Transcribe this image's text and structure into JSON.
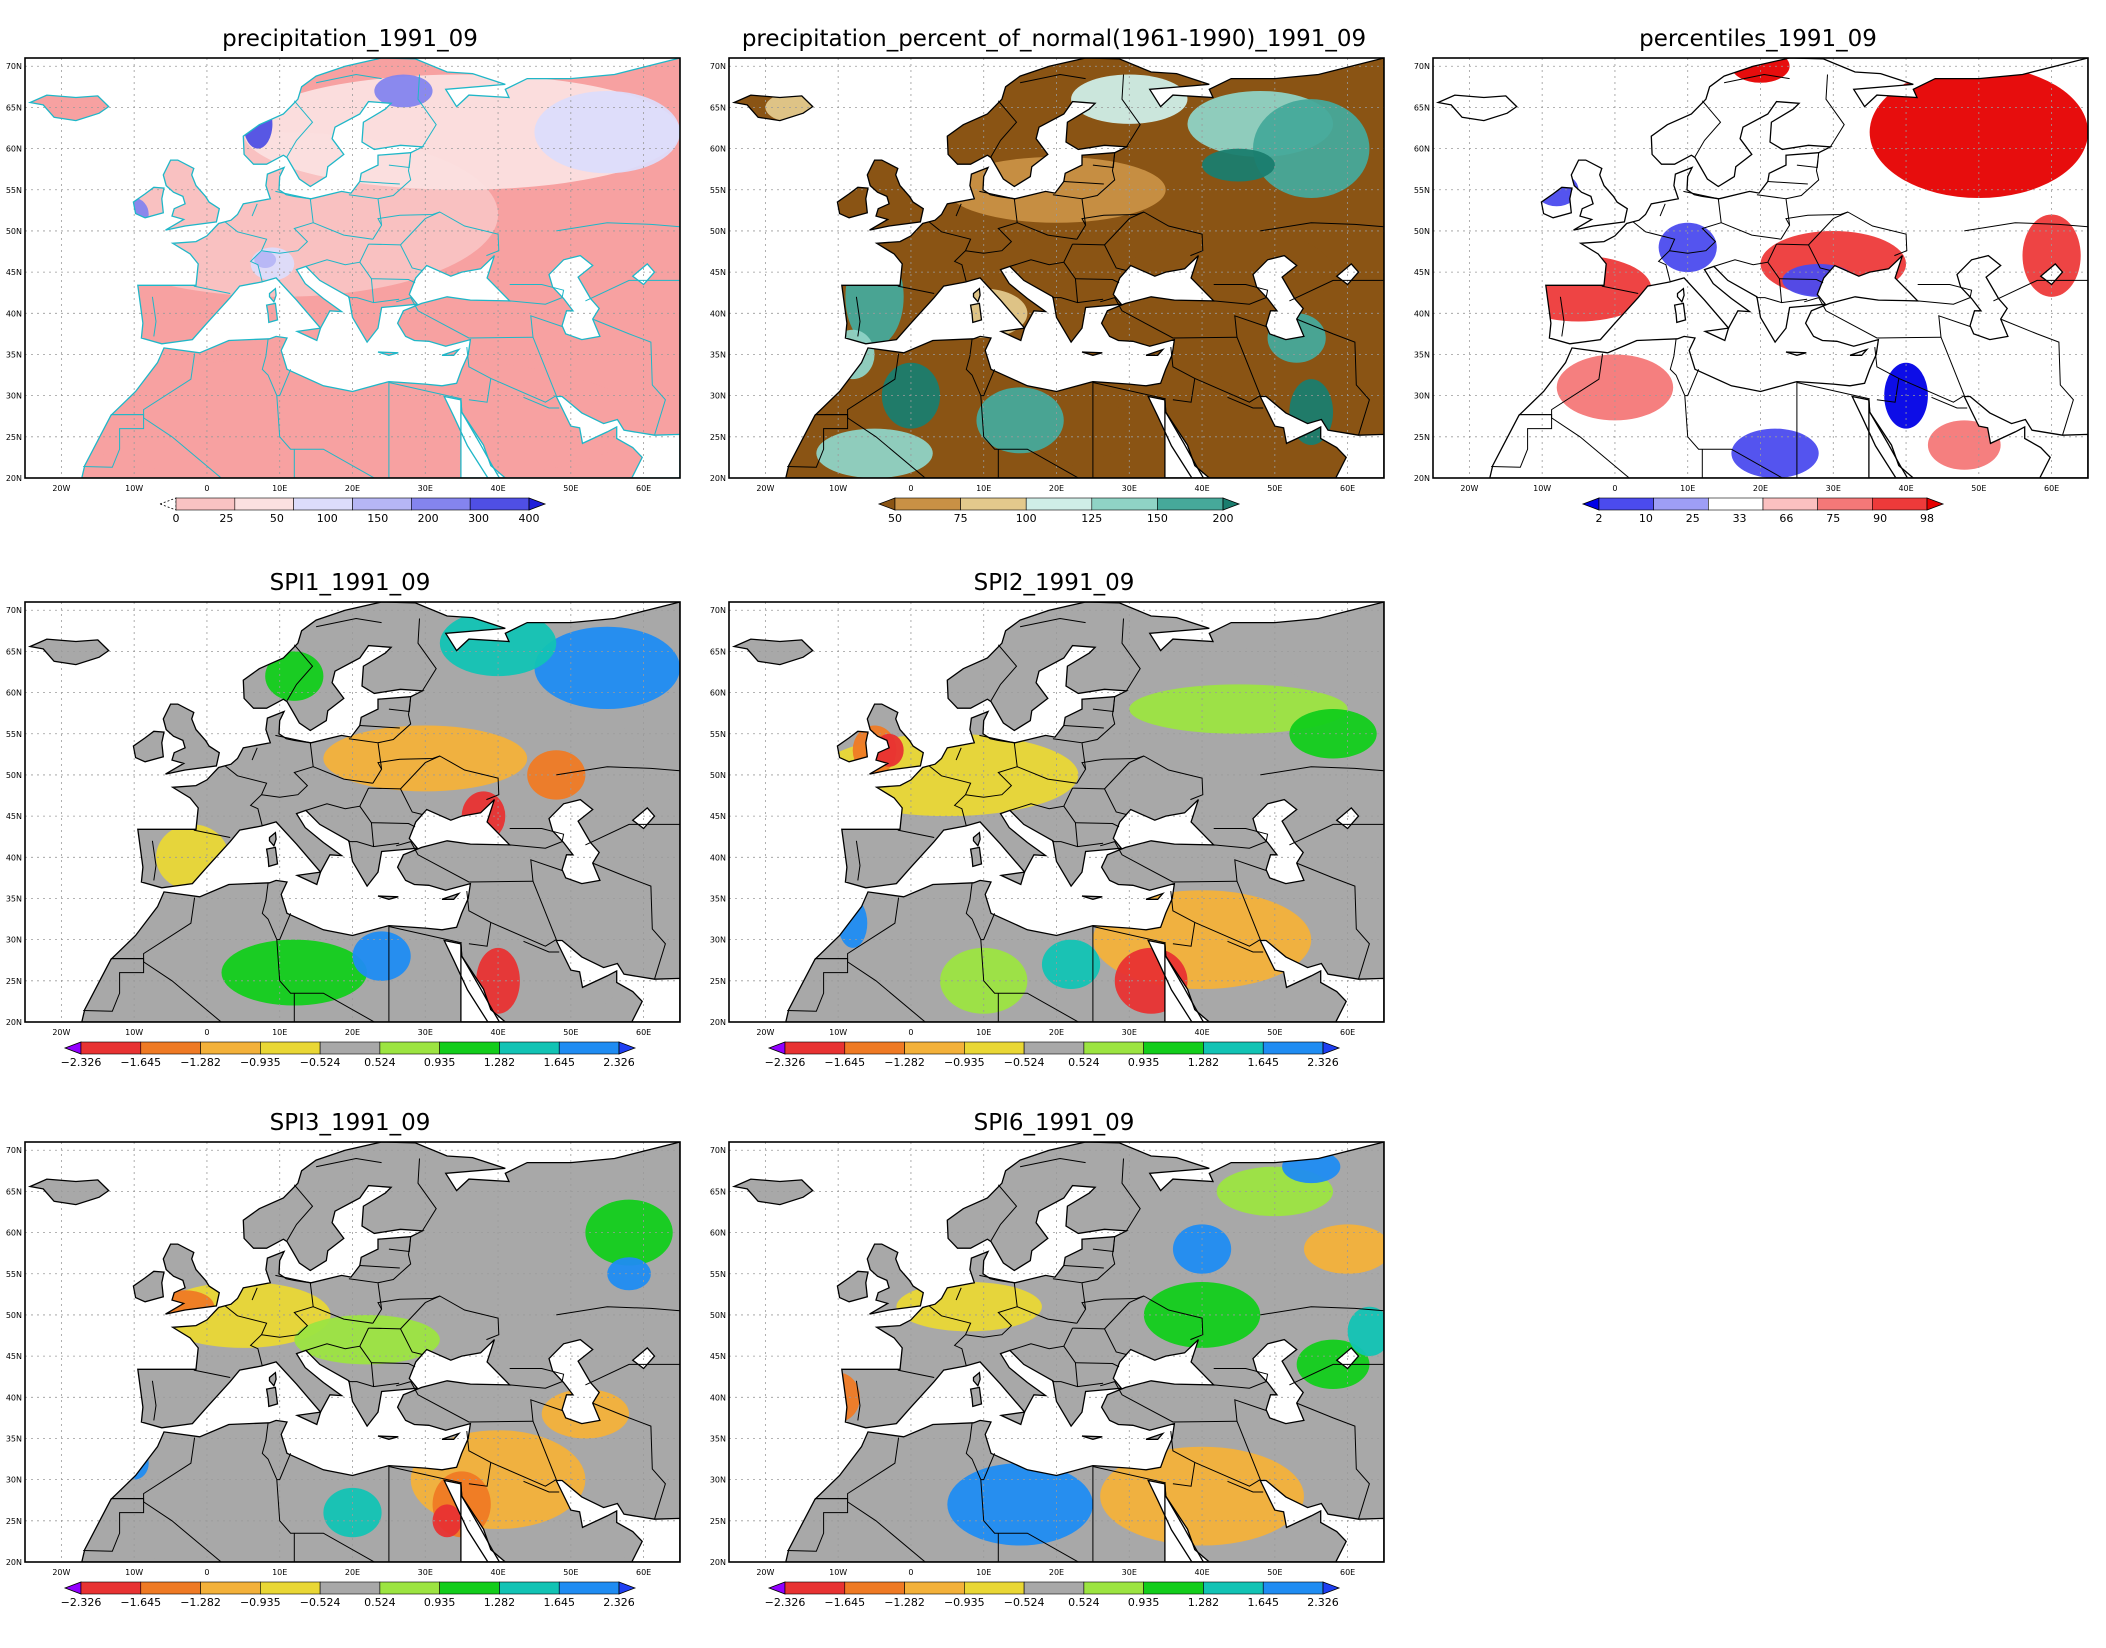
{
  "page": {
    "background": "#ffffff"
  },
  "map_axes": {
    "lat_labels": [
      "20N",
      "25N",
      "30N",
      "35N",
      "40N",
      "45N",
      "50N",
      "55N",
      "60N",
      "65N",
      "70N"
    ],
    "lon_labels": [
      "20W",
      "10W",
      "0",
      "10E",
      "20E",
      "30E",
      "40E",
      "50E",
      "60E"
    ]
  },
  "palettes": {
    "precip": [
      "#ffffff",
      "#f7a1a1",
      "#f9c3c3",
      "#fbe0e0",
      "#dcdcfb",
      "#b6b6f5",
      "#8484ee",
      "#4f4fe4",
      "#1f1fd9"
    ],
    "percent": [
      "#8a5414",
      "#c99145",
      "#e3c98c",
      "#cfeee7",
      "#8fd3c5",
      "#46a99a",
      "#1a7d6e"
    ],
    "percentile": [
      "#0000e6",
      "#4b4bee",
      "#9e9ef6",
      "#ffffff",
      "#fbc0c0",
      "#f47878",
      "#ed3a3a",
      "#e60000"
    ],
    "spi": [
      "#9200ff",
      "#e83232",
      "#ef7a24",
      "#f3b13a",
      "#e9d735",
      "#a8a8a8",
      "#9ce441",
      "#12cd1b",
      "#12c3b4",
      "#1f8cf2",
      "#1f3ff2"
    ]
  },
  "panels": [
    {
      "title": "precipitation_1991_09",
      "type": "precip",
      "colorbar": {
        "labels": [
          "0",
          "25",
          "50",
          "100",
          "150",
          "200",
          "300",
          "400"
        ]
      }
    },
    {
      "title": "precipitation_percent_of_normal(1961-1990)_1991_09",
      "type": "percent",
      "colorbar": {
        "labels": [
          "50",
          "75",
          "100",
          "125",
          "150",
          "200"
        ]
      }
    },
    {
      "title": "percentiles_1991_09",
      "type": "percentile",
      "colorbar": {
        "labels": [
          "2",
          "10",
          "25",
          "33",
          "66",
          "75",
          "90",
          "98"
        ]
      }
    },
    {
      "title": "SPI1_1991_09",
      "type": "spi",
      "colorbar": {
        "labels": [
          "-2.326",
          "-1.645",
          "-1.282",
          "-0.935",
          "-0.524",
          "0.524",
          "0.935",
          "1.282",
          "1.645",
          "2.326"
        ]
      }
    },
    {
      "title": "SPI2_1991_09",
      "type": "spi",
      "colorbar": {
        "labels": [
          "-2.326",
          "-1.645",
          "-1.282",
          "-0.935",
          "-0.524",
          "0.524",
          "0.935",
          "1.282",
          "1.645",
          "2.326"
        ]
      }
    },
    {
      "title": "SPI3_1991_09",
      "type": "spi",
      "colorbar": {
        "labels": [
          "-2.326",
          "-1.645",
          "-1.282",
          "-0.935",
          "-0.524",
          "0.524",
          "0.935",
          "1.282",
          "1.645",
          "2.326"
        ]
      }
    },
    {
      "title": "SPI6_1991_09",
      "type": "spi",
      "colorbar": {
        "labels": [
          "-2.326",
          "-1.645",
          "-1.282",
          "-0.935",
          "-0.524",
          "0.524",
          "0.935",
          "1.282",
          "1.645",
          "2.326"
        ]
      }
    }
  ]
}
